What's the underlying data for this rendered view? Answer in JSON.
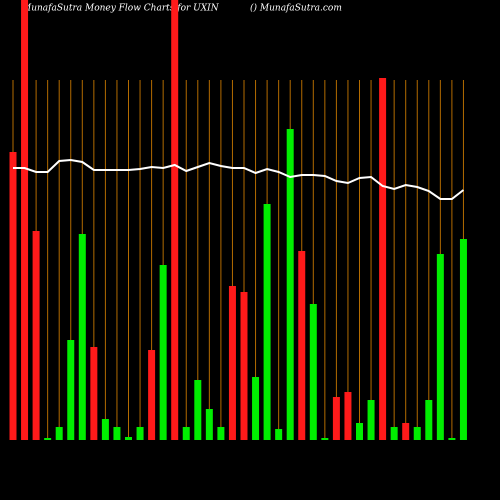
{
  "chart_data": {
    "type": "bar",
    "title": "MunafaSutra  Money Flow  Charts for UXIN",
    "subtitle": "() MunafaSutra.com",
    "ylim": [
      0,
      440
    ],
    "bars": {
      "values": [
        288,
        440,
        209,
        2,
        13,
        100,
        206,
        93,
        21,
        13,
        3,
        13,
        90,
        175,
        440,
        13,
        60,
        31,
        13,
        154,
        148,
        63,
        236,
        11,
        311,
        189,
        136,
        2,
        43,
        48,
        17,
        40,
        362,
        13,
        17,
        13,
        40,
        186,
        2,
        201
      ],
      "colors": [
        "#ff1a1a",
        "#ff1a1a",
        "#ff1a1a",
        "#00ee00",
        "#00ee00",
        "#00ee00",
        "#00ee00",
        "#ff1a1a",
        "#00ee00",
        "#00ee00",
        "#00ee00",
        "#00ee00",
        "#ff1a1a",
        "#00ee00",
        "#ff1a1a",
        "#00ee00",
        "#00ee00",
        "#00ee00",
        "#00ee00",
        "#ff1a1a",
        "#ff1a1a",
        "#00ee00",
        "#00ee00",
        "#00ee00",
        "#00ee00",
        "#ff1a1a",
        "#00ee00",
        "#00ee00",
        "#ff1a1a",
        "#ff1a1a",
        "#00ee00",
        "#00ee00",
        "#ff1a1a",
        "#00ee00",
        "#ff1a1a",
        "#00ee00",
        "#00ee00",
        "#00ee00",
        "#00ee00",
        "#00ee00"
      ]
    },
    "line": {
      "color": "#ffffff",
      "values": [
        272,
        272,
        268,
        268,
        279,
        280,
        278,
        270,
        270,
        270,
        270,
        271,
        273,
        272,
        275,
        269,
        273,
        277,
        274,
        272,
        272,
        267,
        271,
        268,
        263,
        265,
        265,
        264,
        259,
        257,
        262,
        263,
        254,
        251,
        255,
        253,
        249,
        241,
        241,
        250
      ]
    },
    "grid_color": "#b36b00"
  }
}
